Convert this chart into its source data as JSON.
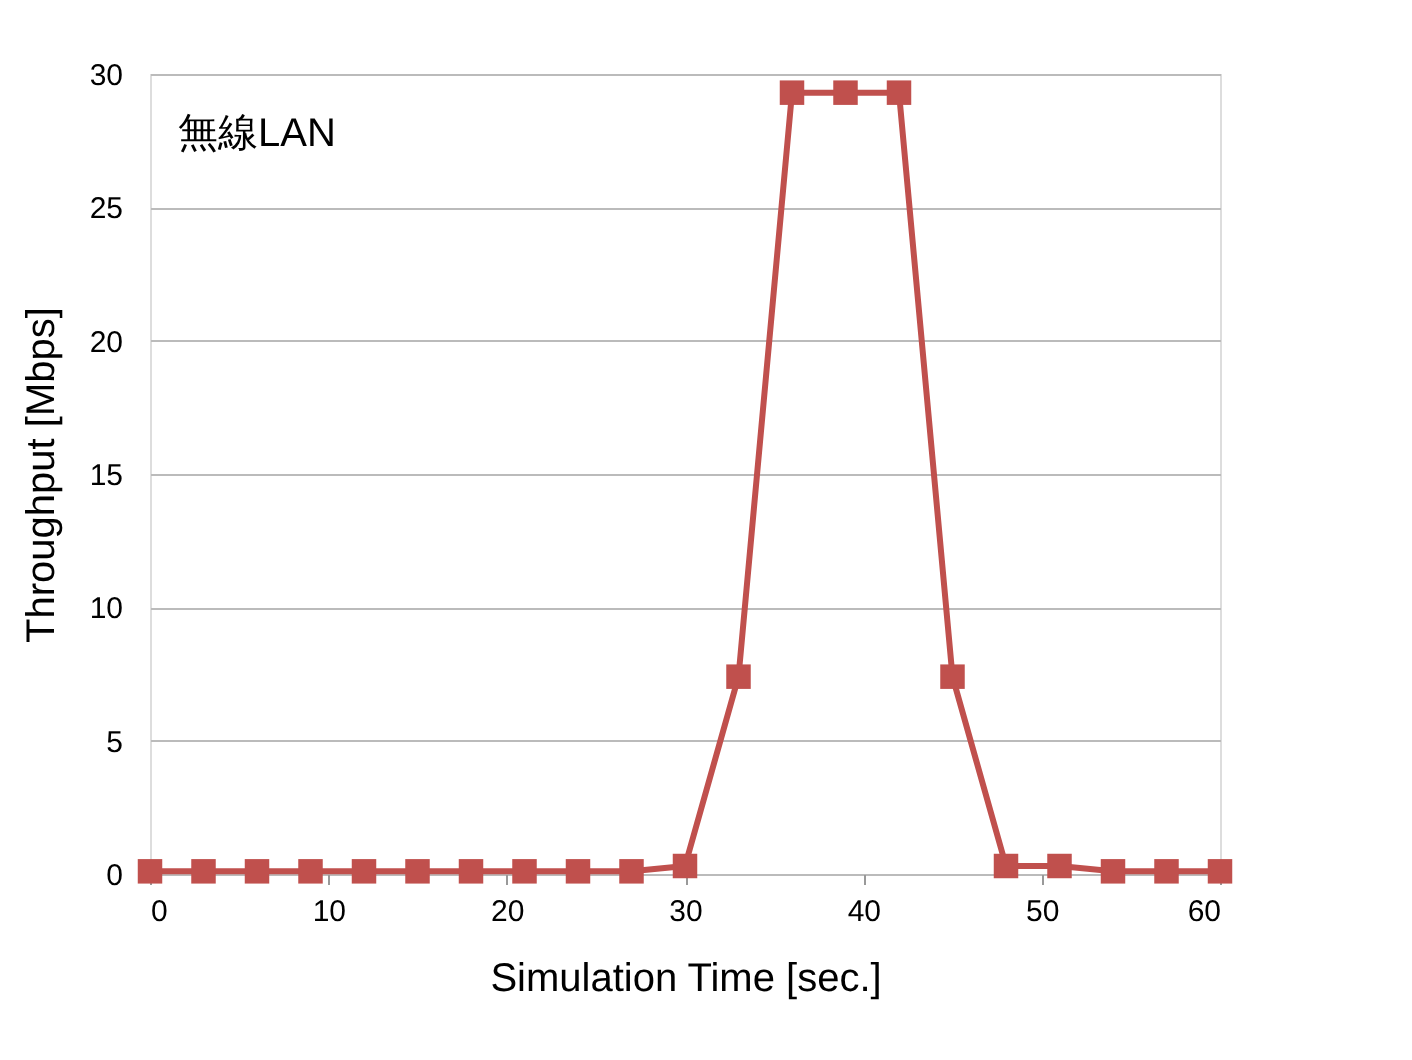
{
  "chart_data": {
    "type": "line",
    "xlabel": "Simulation Time [sec.]",
    "ylabel": "Throughput [Mbps]",
    "annotations": [
      "無線LAN"
    ],
    "x": [
      0,
      3,
      6,
      9,
      12,
      15,
      18,
      21,
      24,
      27,
      30,
      33,
      36,
      39,
      42,
      45,
      48,
      51,
      54,
      57,
      60
    ],
    "series": [
      {
        "color": "#c0504d",
        "values": [
          0.1,
          0.1,
          0.1,
          0.1,
          0.1,
          0.1,
          0.1,
          0.1,
          0.1,
          0.1,
          0.3,
          7.4,
          29.3,
          29.3,
          29.3,
          7.4,
          0.3,
          0.3,
          0.1,
          0.1,
          0.1
        ]
      }
    ],
    "xlim": [
      0,
      60
    ],
    "xticks": [
      0,
      10,
      20,
      30,
      40,
      50,
      60
    ],
    "ylim": [
      0,
      30
    ],
    "yticks": [
      0,
      5,
      10,
      15,
      20,
      25,
      30
    ],
    "grid": "y",
    "legend": false,
    "marker": "square",
    "line_style": "solid"
  }
}
